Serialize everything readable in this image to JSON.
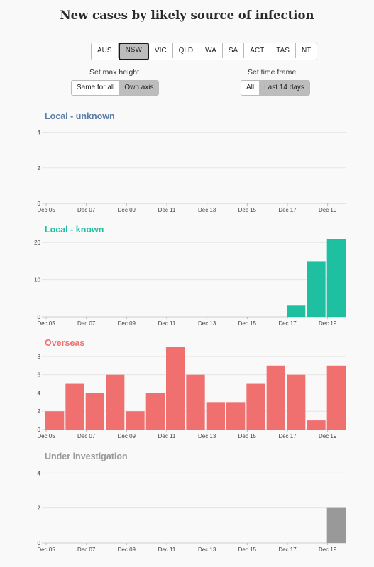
{
  "title": "New cases by likely source of infection",
  "regions": [
    "AUS",
    "NSW",
    "VIC",
    "QLD",
    "WA",
    "SA",
    "ACT",
    "TAS",
    "NT"
  ],
  "active_region": "NSW",
  "controls": {
    "max_height_label": "Set max height",
    "max_height_options": [
      "Same for all",
      "Own axis"
    ],
    "max_height_selected": "Own axis",
    "time_frame_label": "Set time frame",
    "time_frame_options": [
      "All",
      "Last 14 days"
    ],
    "time_frame_selected": "Last 14 days"
  },
  "colors": {
    "local_unknown": "#5c7fa8",
    "local_known": "#1fbfa1",
    "overseas": "#f07070",
    "under_investigation": "#999999"
  },
  "chart_data": [
    {
      "type": "bar",
      "title": "Local - unknown",
      "x": [
        "Dec 05",
        "Dec 06",
        "Dec 07",
        "Dec 08",
        "Dec 09",
        "Dec 10",
        "Dec 11",
        "Dec 12",
        "Dec 13",
        "Dec 14",
        "Dec 15",
        "Dec 16",
        "Dec 17",
        "Dec 18",
        "Dec 19"
      ],
      "x_tick_labels": [
        "Dec 05",
        "Dec 07",
        "Dec 09",
        "Dec 11",
        "Dec 13",
        "Dec 15",
        "Dec 17",
        "Dec 19"
      ],
      "values": [
        0,
        0,
        0,
        0,
        0,
        0,
        0,
        0,
        0,
        0,
        0,
        0,
        0,
        0,
        0
      ],
      "yticks": [
        0,
        2,
        4
      ],
      "ylim": [
        0,
        4.5
      ],
      "color": "#5c7fa8"
    },
    {
      "type": "bar",
      "title": "Local - known",
      "x": [
        "Dec 05",
        "Dec 06",
        "Dec 07",
        "Dec 08",
        "Dec 09",
        "Dec 10",
        "Dec 11",
        "Dec 12",
        "Dec 13",
        "Dec 14",
        "Dec 15",
        "Dec 16",
        "Dec 17",
        "Dec 18",
        "Dec 19"
      ],
      "x_tick_labels": [
        "Dec 05",
        "Dec 07",
        "Dec 09",
        "Dec 11",
        "Dec 13",
        "Dec 15",
        "Dec 17",
        "Dec 19"
      ],
      "values": [
        0,
        0,
        0,
        0,
        0,
        0,
        0,
        0,
        0,
        0,
        0,
        0,
        3,
        15,
        21
      ],
      "yticks": [
        0,
        10,
        20
      ],
      "ylim": [
        0,
        21
      ],
      "color": "#1fbfa1"
    },
    {
      "type": "bar",
      "title": "Overseas",
      "x": [
        "Dec 05",
        "Dec 06",
        "Dec 07",
        "Dec 08",
        "Dec 09",
        "Dec 10",
        "Dec 11",
        "Dec 12",
        "Dec 13",
        "Dec 14",
        "Dec 15",
        "Dec 16",
        "Dec 17",
        "Dec 18",
        "Dec 19"
      ],
      "x_tick_labels": [
        "Dec 05",
        "Dec 07",
        "Dec 09",
        "Dec 11",
        "Dec 13",
        "Dec 15",
        "Dec 17",
        "Dec 19"
      ],
      "values": [
        2,
        5,
        4,
        6,
        2,
        4,
        9,
        6,
        3,
        3,
        5,
        7,
        6,
        1,
        7
      ],
      "yticks": [
        0,
        2,
        4,
        6,
        8
      ],
      "ylim": [
        0,
        9
      ],
      "color": "#f07070"
    },
    {
      "type": "bar",
      "title": "Under investigation",
      "x": [
        "Dec 05",
        "Dec 06",
        "Dec 07",
        "Dec 08",
        "Dec 09",
        "Dec 10",
        "Dec 11",
        "Dec 12",
        "Dec 13",
        "Dec 14",
        "Dec 15",
        "Dec 16",
        "Dec 17",
        "Dec 18",
        "Dec 19"
      ],
      "x_tick_labels": [
        "Dec 05",
        "Dec 07",
        "Dec 09",
        "Dec 11",
        "Dec 13",
        "Dec 15",
        "Dec 17",
        "Dec 19"
      ],
      "values": [
        0,
        0,
        0,
        0,
        0,
        0,
        0,
        0,
        0,
        0,
        0,
        0,
        0,
        0,
        2
      ],
      "yticks": [
        0,
        2,
        4
      ],
      "ylim": [
        0,
        4.5
      ],
      "color": "#999999"
    }
  ]
}
